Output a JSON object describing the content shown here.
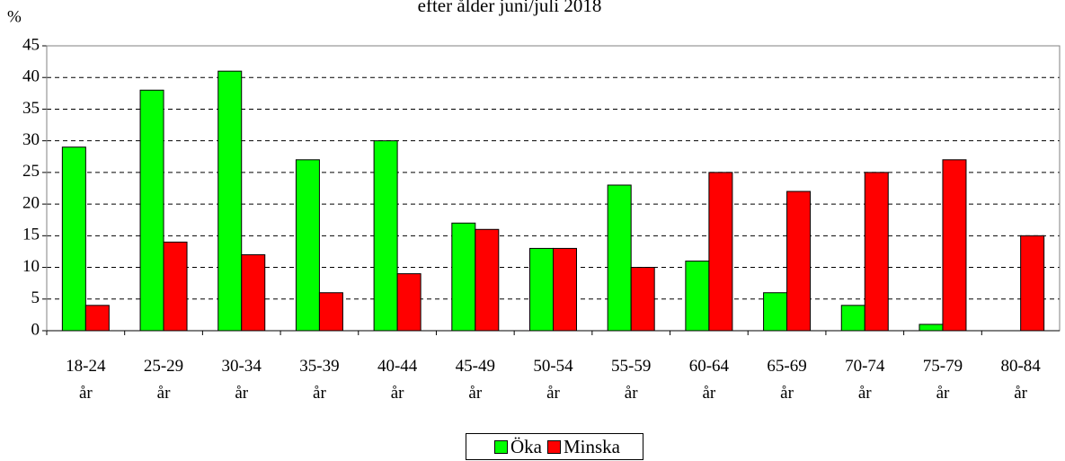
{
  "chart_data": {
    "type": "bar",
    "title": "efter ålder juni/juli 2018",
    "y_label": "%",
    "categories": [
      "18-24 år",
      "25-29 år",
      "30-34 år",
      "35-39 år",
      "40-44 år",
      "45-49 år",
      "50-54 år",
      "55-59 år",
      "60-64 år",
      "65-69 år",
      "70-74 år",
      "75-79 år",
      "80-84 år"
    ],
    "series": [
      {
        "name": "Öka",
        "color": "#00ff00",
        "values": [
          29,
          38,
          41,
          27,
          30,
          17,
          13,
          23,
          11,
          6,
          4,
          1,
          0
        ]
      },
      {
        "name": "Minska",
        "color": "#ff0000",
        "values": [
          4,
          14,
          12,
          6,
          9,
          16,
          13,
          10,
          25,
          22,
          25,
          27,
          15
        ]
      }
    ],
    "ylim": [
      0,
      45
    ],
    "yticks": [
      0,
      5,
      10,
      15,
      20,
      25,
      30,
      35,
      40,
      45
    ],
    "grid": true,
    "legend": "bottom"
  }
}
